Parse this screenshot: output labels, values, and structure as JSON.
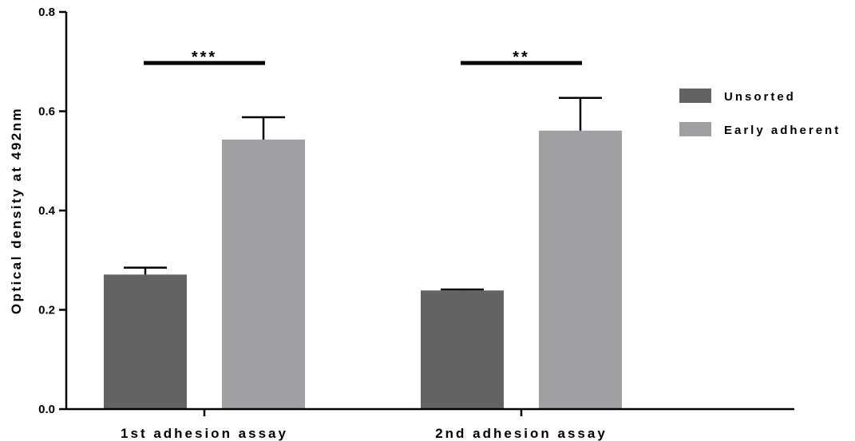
{
  "chart_data": {
    "type": "bar",
    "title": "",
    "xlabel": "",
    "ylabel": "Optical density at 492nm",
    "ylim": [
      0,
      0.8
    ],
    "yticks": [
      "0.0",
      "0.2",
      "0.4",
      "0.6",
      "0.8"
    ],
    "grid": false,
    "legend_position": "right",
    "categories": [
      "1st adhesion assay",
      "2nd adhesion assay"
    ],
    "series": [
      {
        "name": "Unsorted",
        "color": "#636363",
        "values": [
          0.271,
          0.239
        ],
        "errors": [
          0.014,
          0.002
        ]
      },
      {
        "name": "Early adherent",
        "color": "#a0a0a3",
        "values": [
          0.543,
          0.561
        ],
        "errors": [
          0.045,
          0.066
        ]
      }
    ],
    "significance": [
      "***",
      "**"
    ]
  }
}
